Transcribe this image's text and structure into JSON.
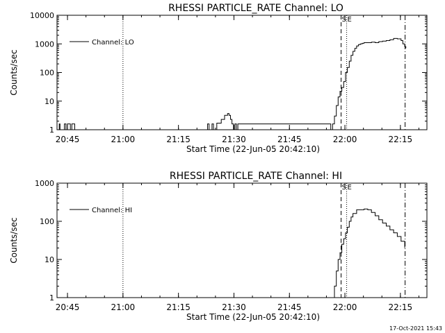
{
  "footer": {
    "timestamp": "17-Oct-2021 15:43"
  },
  "chart_data": [
    {
      "type": "line",
      "title": "RHESSI PARTICLE_RATE Channel: LO",
      "xlabel": "Start Time (22-Jun-05 20:42:10)",
      "ylabel": "Counts/sec",
      "x_unit": "minutes after 20:42:10",
      "xlim": [
        0,
        100
      ],
      "ylim": [
        1,
        10000
      ],
      "yscale": "log",
      "x_ticks": [
        2.83,
        17.83,
        32.83,
        47.83,
        62.83,
        77.83,
        92.83
      ],
      "x_tick_labels": [
        "20:45",
        "21:00",
        "21:15",
        "21:30",
        "21:45",
        "22:00",
        "22:15"
      ],
      "y_ticks": [
        1,
        10,
        100,
        1000,
        10000
      ],
      "y_tick_labels": [
        "1",
        "10",
        "100",
        "1000",
        "10000"
      ],
      "legend": {
        "position": "top-left",
        "entries": [
          "Channel: LO"
        ]
      },
      "markers": [
        {
          "label": "S",
          "x": 76.8,
          "style": "dashed"
        },
        {
          "label": "E",
          "x": 78.3,
          "style": "dotted"
        },
        {
          "label": "",
          "x": 17.83,
          "style": "dotted"
        },
        {
          "label": "",
          "x": 94.1,
          "style": "dashdot"
        }
      ],
      "series": [
        {
          "name": "Channel: LO",
          "x": [
            0,
            0.3,
            0.6,
            0.8,
            1.2,
            1.6,
            2.0,
            2.4,
            2.8,
            3.2,
            3.6,
            4.0,
            4.4,
            4.8,
            40.3,
            40.7,
            41.1,
            41.5,
            41.9,
            42.3,
            42.7,
            43.2,
            43.6,
            44.0,
            44.4,
            44.9,
            45.3,
            45.7,
            46.1,
            46.5,
            46.9,
            47.3,
            47.7,
            48.1,
            48.5,
            48.9,
            74,
            74.5,
            75,
            75.5,
            76,
            76.5,
            77,
            77.5,
            78,
            78.5,
            79,
            79.5,
            80,
            80.5,
            81,
            81.5,
            82,
            82.5,
            83,
            84,
            85,
            86,
            87,
            88,
            89,
            90,
            91,
            92,
            93,
            93.5,
            94,
            94.3
          ],
          "values": [
            1,
            1,
            1.6,
            1,
            1,
            1,
            1.6,
            1,
            1.6,
            1.6,
            1,
            1.6,
            1.6,
            1,
            1,
            1.6,
            1,
            1,
            1.6,
            1,
            1,
            1.7,
            1.7,
            1.7,
            2.3,
            2.3,
            3.2,
            3.2,
            3.7,
            3.2,
            2.3,
            1.6,
            1,
            1.6,
            1,
            1.6,
            1,
            1.6,
            3,
            7,
            14,
            22,
            30,
            48,
            100,
            150,
            250,
            400,
            550,
            700,
            850,
            950,
            1000,
            1050,
            1100,
            1100,
            1150,
            1100,
            1200,
            1250,
            1300,
            1400,
            1550,
            1500,
            1300,
            1000,
            800,
            700
          ]
        }
      ]
    },
    {
      "type": "line",
      "title": "RHESSI PARTICLE_RATE Channel: HI",
      "xlabel": "Start Time (22-Jun-05 20:42:10)",
      "ylabel": "Counts/sec",
      "x_unit": "minutes after 20:42:10",
      "xlim": [
        0,
        100
      ],
      "ylim": [
        1,
        1000
      ],
      "yscale": "log",
      "x_ticks": [
        2.83,
        17.83,
        32.83,
        47.83,
        62.83,
        77.83,
        92.83
      ],
      "x_tick_labels": [
        "20:45",
        "21:00",
        "21:15",
        "21:30",
        "21:45",
        "22:00",
        "22:15"
      ],
      "y_ticks": [
        1,
        10,
        100,
        1000
      ],
      "y_tick_labels": [
        "1",
        "10",
        "100",
        "1000"
      ],
      "legend": {
        "position": "top-left",
        "entries": [
          "Channel: HI"
        ]
      },
      "markers": [
        {
          "label": "S",
          "x": 76.8,
          "style": "dashed"
        },
        {
          "label": "E",
          "x": 78.3,
          "style": "dotted"
        },
        {
          "label": "",
          "x": 17.83,
          "style": "dotted"
        },
        {
          "label": "",
          "x": 94.1,
          "style": "dashdot"
        }
      ],
      "series": [
        {
          "name": "Channel: HI",
          "x": [
            74.5,
            75,
            75.5,
            76,
            76.5,
            77,
            77.5,
            78,
            78.5,
            79,
            79.5,
            80,
            81,
            82,
            83,
            84,
            85,
            86,
            87,
            88,
            89,
            90,
            91,
            92,
            93,
            94
          ],
          "values": [
            1,
            2,
            5,
            10,
            15,
            25,
            35,
            50,
            70,
            100,
            130,
            160,
            200,
            200,
            210,
            200,
            170,
            140,
            110,
            90,
            75,
            60,
            50,
            40,
            30,
            20
          ]
        }
      ]
    }
  ]
}
